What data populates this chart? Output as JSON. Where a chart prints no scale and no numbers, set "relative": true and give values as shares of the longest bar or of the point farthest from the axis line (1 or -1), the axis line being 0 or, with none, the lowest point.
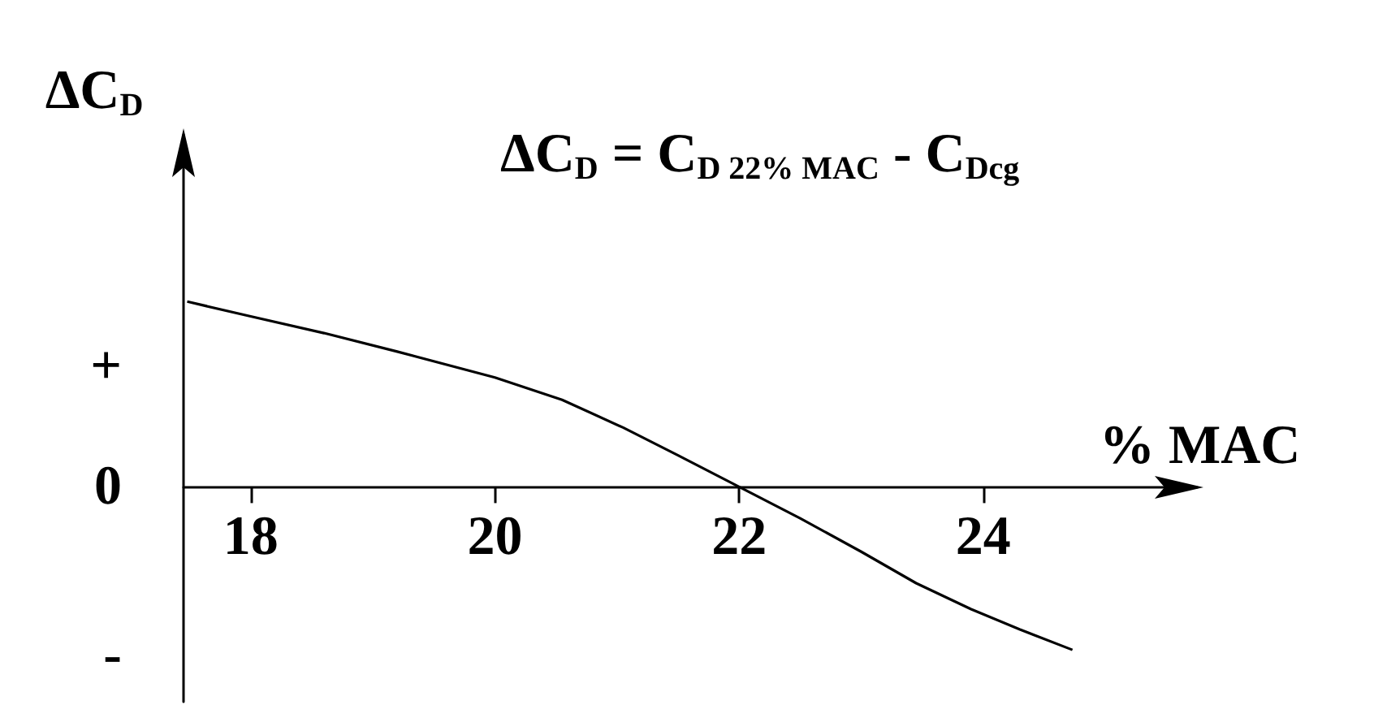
{
  "chart_data": {
    "type": "line",
    "relative": true,
    "xlabel": "% MAC",
    "ylabel": "ΔC$_{D}$",
    "annotations": [
      "ΔC$_{D}$ = C$_{D 22% MAC}$ - C$_{Dcg}$",
      "+",
      "0",
      "-"
    ],
    "x": [
      17.48,
      18,
      18.6,
      19.2,
      20,
      20.55,
      21.05,
      21.5,
      22,
      22.5,
      23,
      23.45,
      23.9,
      24.3,
      24.73
    ],
    "series": [
      {
        "color": "#000000",
        "values": [
          1,
          0.92,
          0.83,
          0.73,
          0.59,
          0.47,
          0.32,
          0.17,
          0,
          -0.17,
          -0.35,
          -0.52,
          -0.66,
          -0.77,
          -0.88
        ]
      }
    ],
    "xlim": [
      17.45,
      25.75
    ],
    "xticks": [
      18,
      20,
      22,
      24
    ],
    "ylim": [
      -1.16,
      1.9
    ],
    "grid": false,
    "marker": "none",
    "line_style": "solid"
  }
}
